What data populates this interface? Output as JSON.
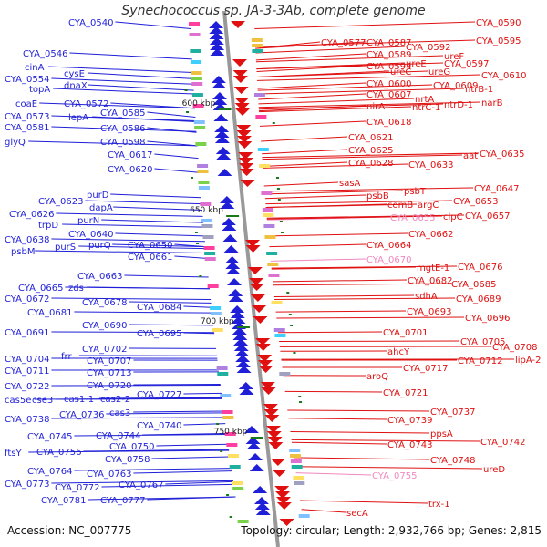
{
  "title": "Synechococcus sp. JA-3-3Ab, complete genome",
  "footer": {
    "accession": "Accession: NC_007775",
    "topology": "Topology: circular; Length: 2,932,766 bp; Genes: 2,815"
  },
  "colors": {
    "left_strand": "#1f1fd8",
    "right_strand": "#e01010",
    "pseudo": "#f088c0",
    "backbone": "#888888",
    "kbp_tick": "#1a7a1a"
  },
  "kbp_labels": [
    "600 kbp",
    "650 kbp",
    "700 kbp",
    "750 kbp"
  ],
  "left_labels": [
    "CYA_0540",
    "CYA_0546",
    "cinA",
    "CYA_0554",
    "cysE",
    "topA",
    "dnaX",
    "coaE",
    "CYA_0572",
    "CYA_0573",
    "lepA",
    "CYA_0585",
    "CYA_0581",
    "CYA_0586",
    "glyQ",
    "CYA_0598",
    "CYA_0617",
    "CYA_0620",
    "purD",
    "CYA_0623",
    "dapA",
    "CYA_0626",
    "purN",
    "trpD",
    "CYA_0640",
    "CYA_0638",
    "purS",
    "purQ",
    "CYA_0650",
    "psbM",
    "CYA_0661",
    "CYA_0663",
    "CYA_0665",
    "zds",
    "CYA_0672",
    "CYA_0678",
    "CYA_0684",
    "CYA_0681",
    "CYA_0690",
    "CYA_0691",
    "CYA_0695",
    "CYA_0702",
    "frr",
    "CYA_0704",
    "CYA_0707",
    "CYA_0711",
    "CYA_0713",
    "CYA_0722",
    "CYA_0720",
    "cas5e",
    "cse3",
    "cas1-1",
    "cas2-2",
    "CYA_0727",
    "cas3",
    "CYA_0738",
    "CYA_0736",
    "CYA_0740",
    "CYA_0745",
    "CYA_0744",
    "CYA_0750",
    "ftsY",
    "CYA_0756",
    "CYA_0758",
    "CYA_0764",
    "CYA_0763",
    "CYA_0773",
    "CYA_0772",
    "CYA_0767",
    "CYA_0781",
    "CYA_0777"
  ],
  "right_labels": [
    "CYA_0590",
    "CYA_0577",
    "CYA_0587",
    "CYA_0595",
    "CYA_0592",
    "CYA_0589",
    "ureF",
    "CYA_0597",
    "ureE",
    "CYA_0594",
    "CYA_0610",
    "ureC",
    "ureG",
    "CYA_0609",
    "CYA_0600",
    "ntrB-1",
    "nrtA",
    "CYA_0607",
    "nirA",
    "ntrC-1",
    "ntrD-1",
    "narB",
    "CYA_0618",
    "CYA_0621",
    "CYA_0625",
    "aat",
    "CYA_0635",
    "CYA_0628",
    "CYA_0633",
    "sasA",
    "CYA_0647",
    "psbB",
    "psbT",
    "CYA_0653",
    "comB",
    "argC",
    "CYA_0657",
    "CYA_0655",
    "clpC",
    "CYA_0662",
    "CYA_0664",
    "CYA_0670",
    "mgtE-1",
    "CYA_0676",
    "CYA_0682",
    "CYA_0685",
    "sdhA",
    "CYA_0689",
    "CYA_0693",
    "CYA_0696",
    "CYA_0701",
    "CYA_0705",
    "CYA_0708",
    "ahcY",
    "CYA_0712",
    "lipA-2",
    "CYA_0717",
    "aroQ",
    "CYA_0721",
    "CYA_0737",
    "CYA_0739",
    "ppsA",
    "CYA_0742",
    "CYA_0743",
    "CYA_0748",
    "ureD",
    "CYA_0755",
    "secA",
    "trx-1"
  ],
  "pseudo_labels": [
    "CYA_0655",
    "CYA_0670",
    "CYA_0755"
  ]
}
